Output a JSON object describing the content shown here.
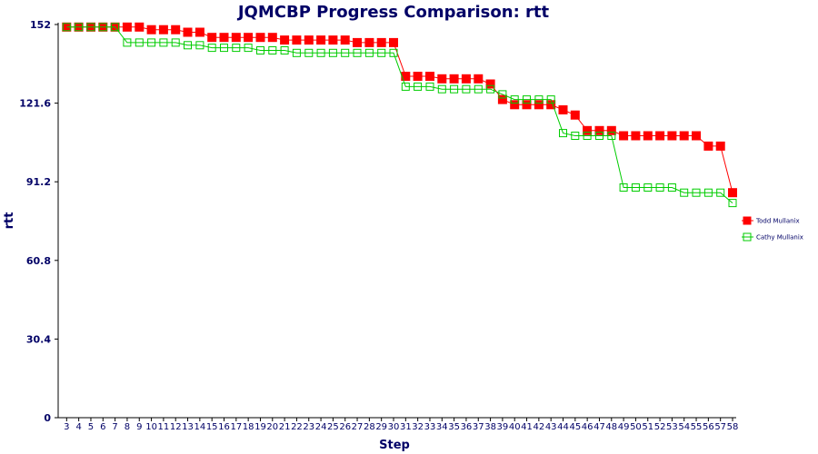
{
  "chart_data": {
    "type": "line",
    "title": "JQMCBP Progress Comparison: rtt",
    "xlabel": "Step",
    "ylabel": "rtt",
    "ylim": [
      0,
      152
    ],
    "yticks": [
      "0",
      "30.4",
      "60.8",
      "91.2",
      "121.6",
      "152"
    ],
    "x": [
      3,
      4,
      5,
      6,
      7,
      8,
      9,
      10,
      11,
      12,
      13,
      14,
      15,
      16,
      17,
      18,
      19,
      20,
      21,
      22,
      23,
      24,
      25,
      26,
      27,
      28,
      29,
      30,
      31,
      32,
      33,
      34,
      35,
      36,
      37,
      38,
      39,
      40,
      41,
      42,
      43,
      44,
      45,
      46,
      47,
      48,
      49,
      50,
      51,
      52,
      53,
      54,
      55,
      56,
      57,
      58
    ],
    "legend_position": "right",
    "grid": false,
    "series": [
      {
        "name": "Todd Mullanix",
        "color": "#ff0000",
        "marker": "filled-square",
        "values": [
          151,
          151,
          151,
          151,
          151,
          151,
          151,
          150,
          150,
          150,
          149,
          149,
          147,
          147,
          147,
          147,
          147,
          147,
          146,
          146,
          146,
          146,
          146,
          146,
          145,
          145,
          145,
          145,
          132,
          132,
          132,
          131,
          131,
          131,
          131,
          129,
          123,
          121,
          121,
          121,
          121,
          119,
          117,
          111,
          111,
          111,
          109,
          109,
          109,
          109,
          109,
          109,
          109,
          105,
          105,
          87
        ]
      },
      {
        "name": "Cathy Mullanix",
        "color": "#00cc00",
        "marker": "hollow-square",
        "values": [
          151,
          151,
          151,
          151,
          151,
          145,
          145,
          145,
          145,
          145,
          144,
          144,
          143,
          143,
          143,
          143,
          142,
          142,
          142,
          141,
          141,
          141,
          141,
          141,
          141,
          141,
          141,
          141,
          128,
          128,
          128,
          127,
          127,
          127,
          127,
          127,
          125,
          123,
          123,
          123,
          123,
          110,
          109,
          109,
          109,
          109,
          89,
          89,
          89,
          89,
          89,
          87,
          87,
          87,
          87,
          83
        ]
      }
    ]
  }
}
